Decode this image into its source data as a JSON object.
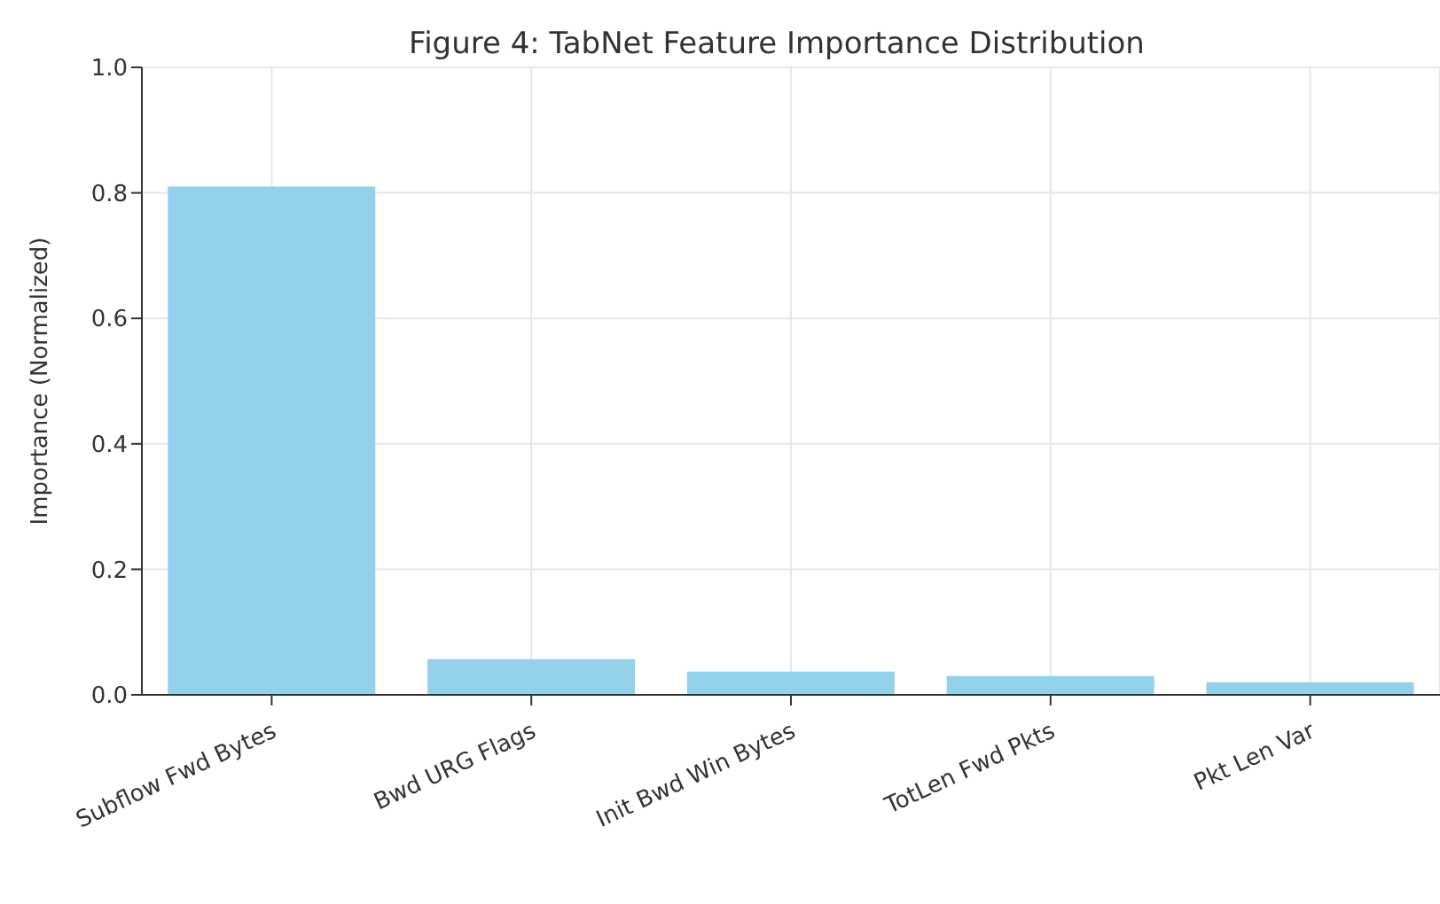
{
  "chart_data": {
    "type": "bar",
    "title": "Figure 4: TabNet Feature Importance Distribution",
    "ylabel": "Importance (Normalized)",
    "categories": [
      "Subflow Fwd Bytes",
      "Bwd URG Flags",
      "Init Bwd Win Bytes",
      "TotLen Fwd Pkts",
      "Pkt Len Var"
    ],
    "values": [
      0.81,
      0.057,
      0.037,
      0.03,
      0.02
    ],
    "color": "#93d0ea",
    "ylim": [
      0,
      1
    ],
    "yticks": [
      {
        "value": 0,
        "label": "0.0"
      },
      {
        "value": 0.2,
        "label": "0.2"
      },
      {
        "value": 0.4,
        "label": "0.4"
      },
      {
        "value": 0.6,
        "label": "0.6"
      },
      {
        "value": 0.8,
        "label": "0.8"
      },
      {
        "value": 1,
        "label": "1.0"
      }
    ],
    "grid": true
  }
}
